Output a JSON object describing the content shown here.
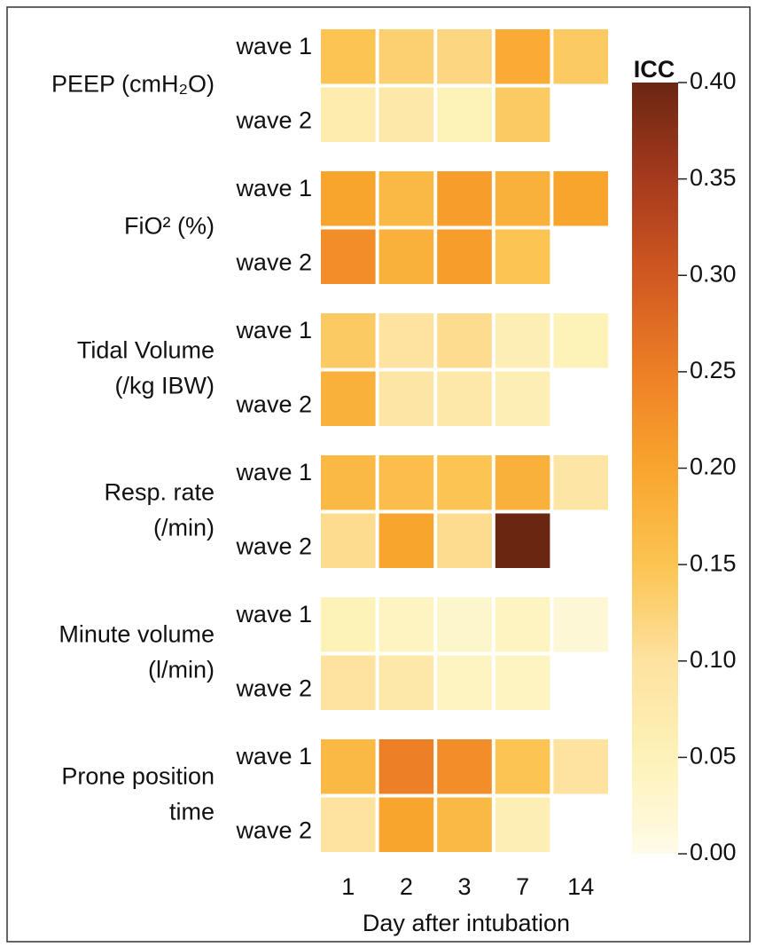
{
  "chart_data": {
    "type": "heatmap",
    "x_label": "Day after intubation",
    "categories": [
      "1",
      "2",
      "3",
      "7",
      "14"
    ],
    "groups": [
      {
        "label": [
          "PEEP (cmH₂O)"
        ],
        "rows": [
          "wave 1",
          "wave 2"
        ],
        "values": [
          [
            0.15,
            0.13,
            0.12,
            0.19,
            0.14
          ],
          [
            0.07,
            0.08,
            0.05,
            0.14,
            null
          ]
        ]
      },
      {
        "label": [
          "FiO² (%)"
        ],
        "rows": [
          "wave 1",
          "wave 2"
        ],
        "values": [
          [
            0.2,
            0.17,
            0.21,
            0.18,
            0.2
          ],
          [
            0.23,
            0.18,
            0.21,
            0.15,
            null
          ]
        ]
      },
      {
        "label": [
          "Tidal Volume",
          "(/kg IBW)"
        ],
        "rows": [
          "wave 1",
          "wave 2"
        ],
        "values": [
          [
            0.14,
            0.1,
            0.11,
            0.06,
            0.05
          ],
          [
            0.18,
            0.09,
            0.08,
            0.06,
            null
          ]
        ]
      },
      {
        "label": [
          "Resp. rate",
          "(/min)"
        ],
        "rows": [
          "wave 1",
          "wave 2"
        ],
        "values": [
          [
            0.17,
            0.16,
            0.15,
            0.18,
            0.09
          ],
          [
            0.11,
            0.2,
            0.11,
            0.4,
            null
          ]
        ]
      },
      {
        "label": [
          "Minute volume",
          "(l/min)"
        ],
        "rows": [
          "wave 1",
          "wave 2"
        ],
        "values": [
          [
            0.05,
            0.04,
            0.03,
            0.04,
            0.02
          ],
          [
            0.1,
            0.08,
            0.04,
            0.04,
            null
          ]
        ]
      },
      {
        "label": [
          "Prone position",
          "time"
        ],
        "rows": [
          "wave 1",
          "wave 2"
        ],
        "values": [
          [
            0.17,
            0.25,
            0.23,
            0.15,
            0.1
          ],
          [
            0.1,
            0.2,
            0.17,
            0.06,
            null
          ]
        ]
      }
    ],
    "colorbar_title": "ICC",
    "clim": [
      0,
      0.4
    ],
    "cticks": [
      {
        "value": 0,
        "label": "0.00"
      },
      {
        "value": 0.05,
        "label": "0.05"
      },
      {
        "value": 0.1,
        "label": "0.10"
      },
      {
        "value": 0.15,
        "label": "0.15"
      },
      {
        "value": 0.2,
        "label": "0.20"
      },
      {
        "value": 0.25,
        "label": "0.25"
      },
      {
        "value": 0.3,
        "label": "0.30"
      },
      {
        "value": 0.35,
        "label": "0.35"
      },
      {
        "value": 0.4,
        "label": "0.40"
      }
    ],
    "colors": [
      "#fffbe8",
      "#fdf2b8",
      "#fde2a0",
      "#fcc452",
      "#f8a52e",
      "#ed7f26",
      "#d05822",
      "#a53a1e",
      "#6b2612"
    ]
  }
}
